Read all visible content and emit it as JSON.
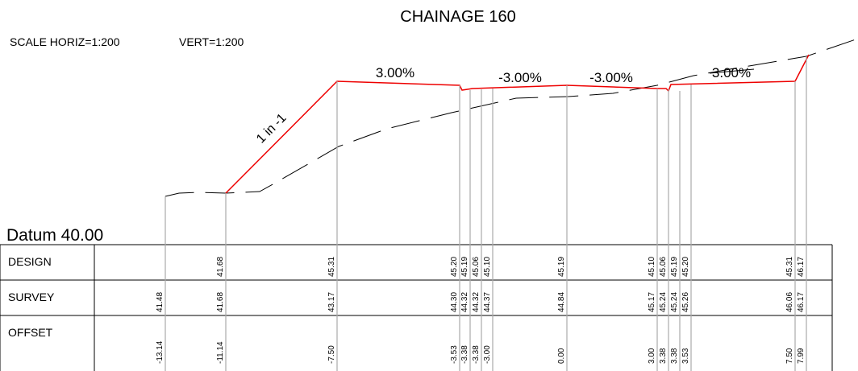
{
  "title": "CHAINAGE 160",
  "scale_horiz": "SCALE HORIZ=1:200",
  "scale_vert": "VERT=1:200",
  "datum": "Datum 40.00",
  "annotations": [
    "3.00%",
    "-3.00%",
    "-3.00%",
    "3.00%",
    "1 in -1"
  ],
  "table": {
    "rows": [
      {
        "label": "DESIGN",
        "values": [
          null,
          "41.68",
          "45.31",
          "45.20",
          "45.19",
          "45.06",
          "45.10",
          "45.19",
          "45.10",
          "45.06",
          "45.19",
          "45.20",
          "45.31",
          "46.17"
        ]
      },
      {
        "label": "SURVEY",
        "values": [
          "41.48",
          "41.68",
          "43.17",
          "44.30",
          "44.32",
          "44.32",
          "44.37",
          "44.84",
          "45.17",
          "45.24",
          "45.24",
          "45.26",
          "46.06",
          "46.17"
        ]
      },
      {
        "label": "OFFSET",
        "values": [
          "-13.14",
          "-11.14",
          "-7.50",
          "-3.53",
          "-3.38",
          "-3.38",
          "-3.00",
          "0.00",
          "3.00",
          "3.38",
          "3.38",
          "3.53",
          "7.50",
          "7.99"
        ]
      }
    ]
  }
}
